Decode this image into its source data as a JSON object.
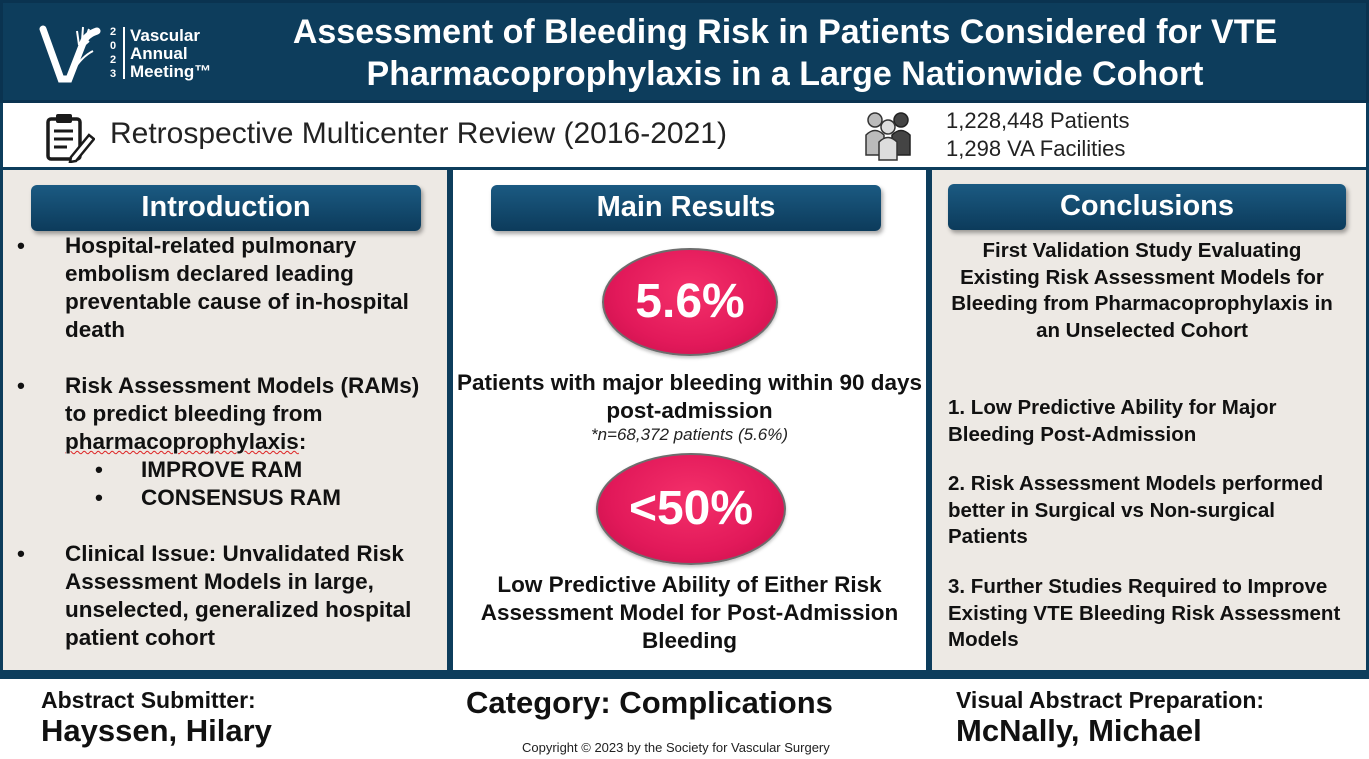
{
  "logo": {
    "year": [
      "2",
      "0",
      "2",
      "3"
    ],
    "lines": [
      "Vascular",
      "Annual",
      "Meeting™"
    ]
  },
  "title": {
    "line1": "Assessment of Bleeding Risk in Patients Considered for VTE",
    "line2": "Pharmacoprophylaxis in a Large Nationwide Cohort"
  },
  "subheader": {
    "study_type": "Retrospective Multicenter Review  (2016-2021)",
    "patients": "1,228,448 Patients",
    "facilities": "1,298 VA Facilities",
    "clipboard_icon": "clipboard-pencil-icon",
    "people_icon": "people-group-icon"
  },
  "introduction": {
    "heading": "Introduction",
    "bullet_char": "•",
    "b1": "Hospital-related pulmonary embolism declared leading preventable cause of in-hospital death",
    "b2_prefix": "Risk Assessment Models (RAMs) to predict bleeding from ",
    "b2_underlined": "pharmacoprophylaxis",
    "b2_suffix": ":",
    "sub1": "IMPROVE RAM",
    "sub2": "CONSENSUS RAM",
    "b3": "Clinical Issue: Unvalidated Risk Assessment Models in large, unselected, generalized hospital patient cohort"
  },
  "results": {
    "heading": "Main Results",
    "stat1": "5.6%",
    "stat1_text": "Patients with major bleeding within 90 days post-admission",
    "stat1_note": "*n=68,372 patients (5.6%)",
    "stat2": "<50%",
    "stat2_text": "Low Predictive Ability of Either Risk Assessment Model for Post-Admission Bleeding"
  },
  "conclusions": {
    "heading": "Conclusions",
    "lead": "First Validation Study Evaluating Existing Risk Assessment Models for Bleeding from Pharmacoprophylaxis in an Unselected Cohort",
    "c1": "1. Low Predictive Ability for Major Bleeding Post-Admission",
    "c2": "2. Risk Assessment Models performed better in Surgical vs Non-surgical Patients",
    "c3": "3.  Further Studies Required to Improve Existing VTE Bleeding Risk Assessment Models"
  },
  "footer": {
    "submitter_label": "Abstract Submitter:",
    "submitter_name": "Hayssen, Hilary",
    "category": "Category: Complications",
    "copyright": "Copyright © 2023 by the Society for Vascular Surgery",
    "prep_label": "Visual Abstract Preparation:",
    "prep_name": "McNally, Michael"
  },
  "colors": {
    "navy": "#0d3d5c",
    "panel_beige": "#ede9e4",
    "stat_red": "#e2195a"
  }
}
